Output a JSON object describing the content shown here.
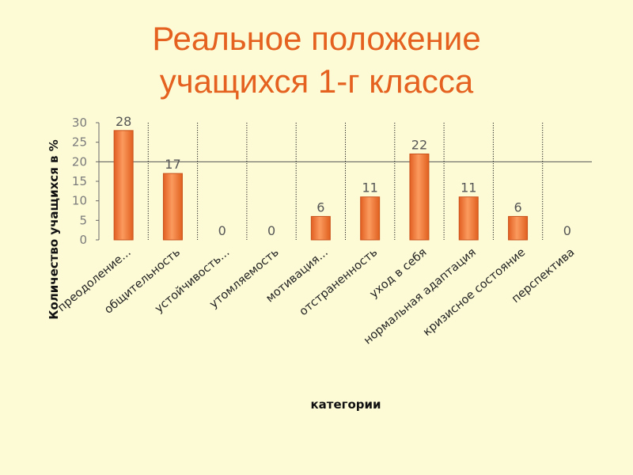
{
  "slide": {
    "title_line1": "Реальное положение",
    "title_line2": "учащихся 1-г класса"
  },
  "colors": {
    "background": "#fdfbd6",
    "title": "#e4611f",
    "bar_fill": "#f07a3a",
    "bar_edge": "#c9531d"
  },
  "chart_data": {
    "type": "bar",
    "title": "",
    "xlabel": "категории",
    "ylabel": "Количество учащихся в %",
    "categories": [
      "преодоление...",
      "общительность",
      "устойчивость...",
      "утомляемость",
      "мотивация...",
      "отстраненность",
      "уход в себя",
      "нормальная адаптация",
      "кризисное состояние",
      "перспектива"
    ],
    "values": [
      28,
      17,
      0,
      0,
      6,
      11,
      22,
      11,
      6,
      0
    ],
    "ylim": [
      0,
      30
    ],
    "yticks": [
      0,
      5,
      10,
      15,
      20,
      25,
      30
    ],
    "grid": "vertical separators between categories",
    "data_labels": true,
    "legend": "none"
  }
}
